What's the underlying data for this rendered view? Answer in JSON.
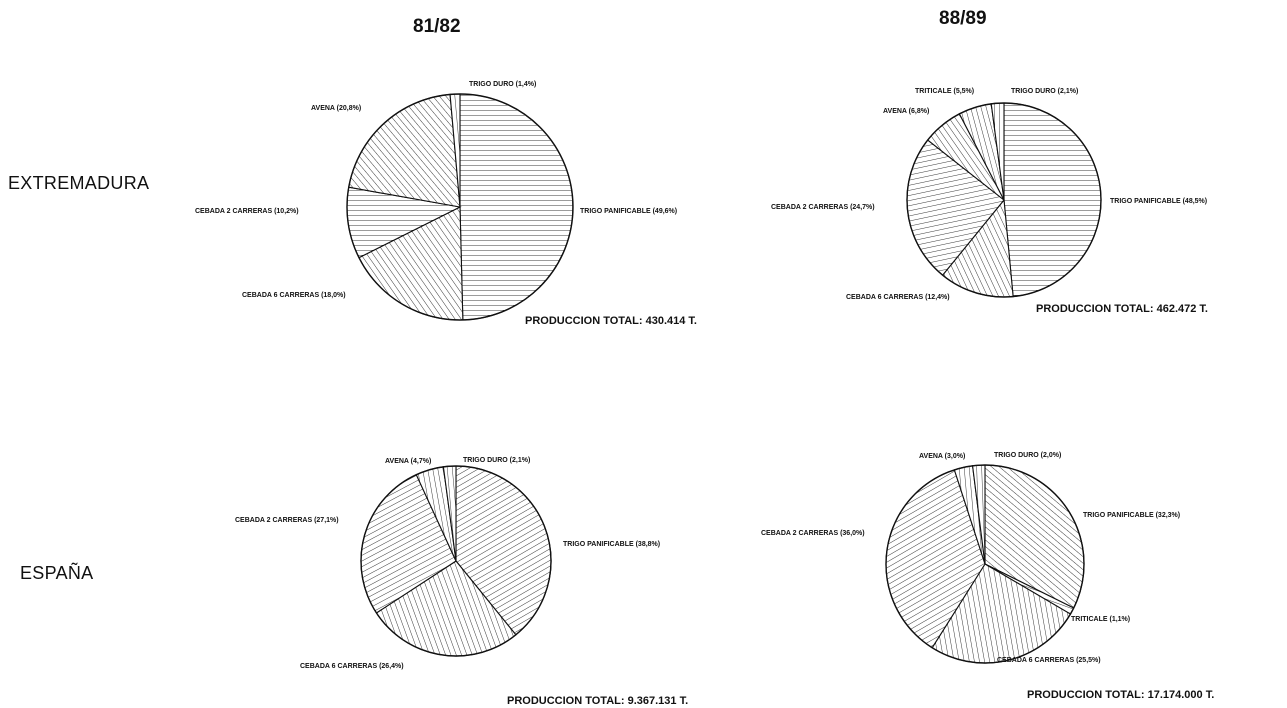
{
  "header": {
    "period_left": "81/82",
    "period_right": "88/89"
  },
  "rows": {
    "extremadura": "EXTREMADURA",
    "espana": "ESPAÑA"
  },
  "chart_data": [
    {
      "type": "pie",
      "region": "EXTREMADURA",
      "period": "81/82",
      "total_label": "PRODUCCION TOTAL: 430.414 T.",
      "slices": [
        {
          "label": "TRIGO PANIFICABLE (49,6%)",
          "value": 49.6
        },
        {
          "label": "CEBADA 6 CARRERAS (18,0%)",
          "value": 18.0
        },
        {
          "label": "CEBADA 2 CARRERAS (10,2%)",
          "value": 10.2
        },
        {
          "label": "AVENA (20,8%)",
          "value": 20.8
        },
        {
          "label": "TRIGO DURO (1,4%)",
          "value": 1.4
        }
      ]
    },
    {
      "type": "pie",
      "region": "EXTREMADURA",
      "period": "88/89",
      "total_label": "PRODUCCION TOTAL: 462.472 T.",
      "slices": [
        {
          "label": "TRIGO PANIFICABLE (48,5%)",
          "value": 48.5
        },
        {
          "label": "CEBADA 6 CARRERAS (12,4%)",
          "value": 12.4
        },
        {
          "label": "CEBADA 2 CARRERAS (24,7%)",
          "value": 24.7
        },
        {
          "label": "AVENA (6,8%)",
          "value": 6.8
        },
        {
          "label": "TRITICALE (5,5%)",
          "value": 5.5
        },
        {
          "label": "TRIGO DURO (2,1%)",
          "value": 2.1
        }
      ]
    },
    {
      "type": "pie",
      "region": "ESPAÑA",
      "period": "81/82",
      "total_label": "PRODUCCION TOTAL: 9.367.131 T.",
      "slices": [
        {
          "label": "TRIGO PANIFICABLE (38,8%)",
          "value": 38.8
        },
        {
          "label": "CEBADA 6 CARRERAS (26,4%)",
          "value": 26.4
        },
        {
          "label": "CEBADA 2 CARRERAS (27,1%)",
          "value": 27.1
        },
        {
          "label": "AVENA (4,7%)",
          "value": 4.7
        },
        {
          "label": "TRIGO DURO (2,1%)",
          "value": 2.1
        }
      ]
    },
    {
      "type": "pie",
      "region": "ESPAÑA",
      "period": "88/89",
      "total_label": "PRODUCCION TOTAL: 17.174.000 T.",
      "slices": [
        {
          "label": "TRIGO PANIFICABLE (32,3%)",
          "value": 32.3
        },
        {
          "label": "TRITICALE (1,1%)",
          "value": 1.1
        },
        {
          "label": "CEBADA 6 CARRERAS (25,5%)",
          "value": 25.5
        },
        {
          "label": "CEBADA 2 CARRERAS (36,0%)",
          "value": 36.0
        },
        {
          "label": "AVENA (3,0%)",
          "value": 3.0
        },
        {
          "label": "TRIGO DURO (2,0%)",
          "value": 2.0
        }
      ]
    }
  ]
}
